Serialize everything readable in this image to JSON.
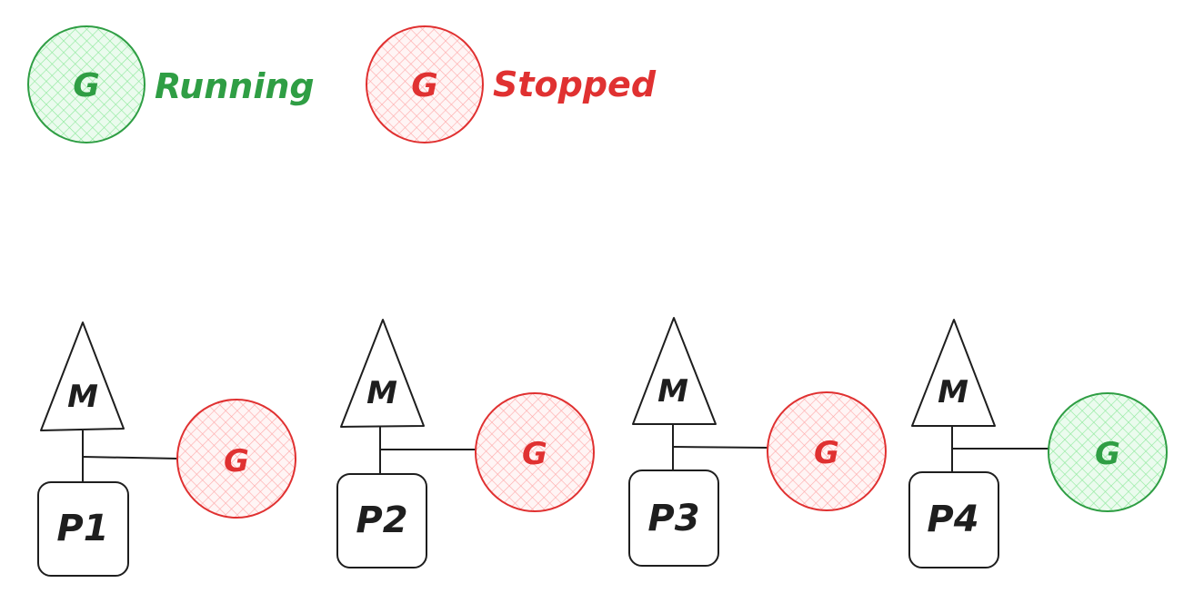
{
  "legend": {
    "running": {
      "symbol": "G",
      "label": "Running",
      "color": "#2f9e44",
      "fill": "#b2f2bb"
    },
    "stopped": {
      "symbol": "G",
      "label": "Stopped",
      "color": "#e03131",
      "fill": "#ffc9c9"
    }
  },
  "units": [
    {
      "machine": "M",
      "processor": "P1",
      "goroutine": "G",
      "state": "stopped"
    },
    {
      "machine": "M",
      "processor": "P2",
      "goroutine": "G",
      "state": "stopped"
    },
    {
      "machine": "M",
      "processor": "P3",
      "goroutine": "G",
      "state": "stopped"
    },
    {
      "machine": "M",
      "processor": "P4",
      "goroutine": "G",
      "state": "running"
    }
  ]
}
